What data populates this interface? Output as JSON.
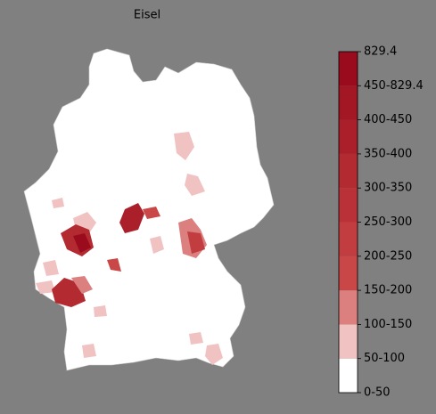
{
  "title": "Eisel",
  "colorbar": {
    "labels": [
      "0-50",
      "50-100",
      "100-150",
      "150-200",
      "200-250",
      "250-300",
      "300-350",
      "350-400",
      "400-450",
      "450-829.4",
      "829.4"
    ],
    "colors": [
      "#ffffff",
      "#f0c2c2",
      "#dc7f7f",
      "#c94747",
      "#c23d40",
      "#ba3238",
      "#b32a31",
      "#ab1f2a",
      "#a31623",
      "#990b1d"
    ]
  }
}
